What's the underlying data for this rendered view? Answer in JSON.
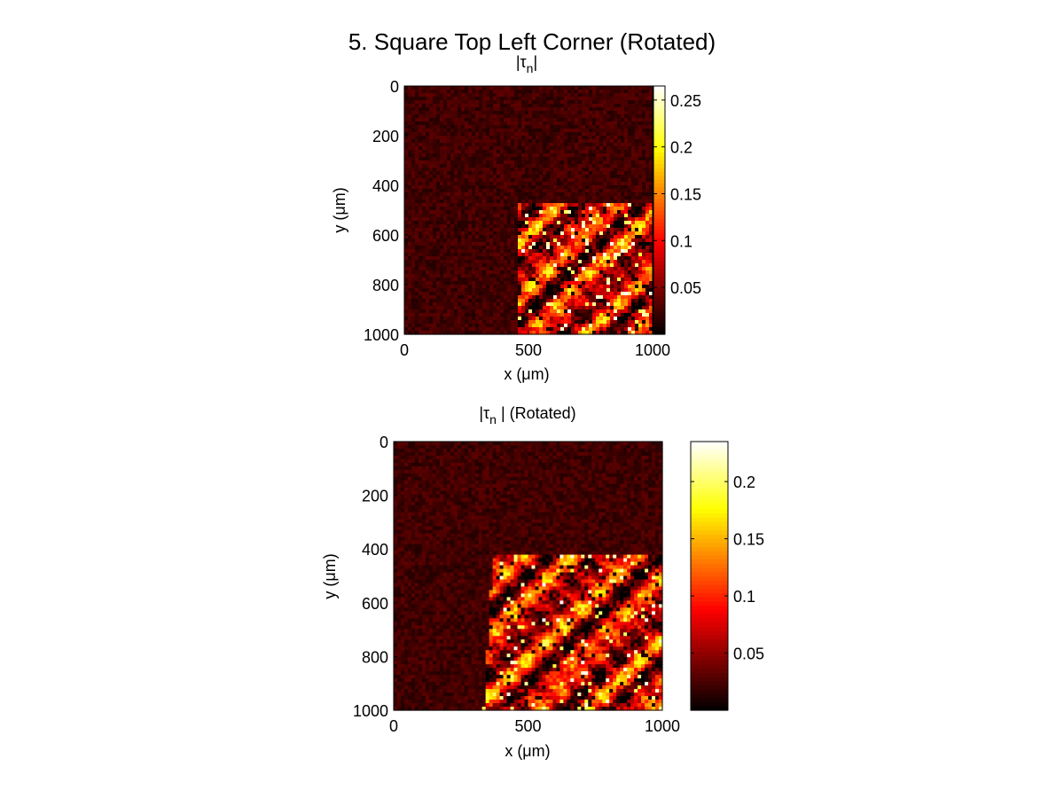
{
  "figure_title": "5. Square Top Left Corner (Rotated)",
  "chart_data": [
    {
      "type": "heatmap",
      "title": "|τn|",
      "title_parts": {
        "open": "|τ",
        "sub": "n",
        "close": "|"
      },
      "xlabel": "x (μm)",
      "ylabel": "y (μm)",
      "xlim": [
        0,
        1000
      ],
      "ylim": [
        1000,
        0
      ],
      "y_reversed": true,
      "xticks": [
        0,
        500,
        1000
      ],
      "yticks": [
        0,
        200,
        400,
        600,
        800,
        1000
      ],
      "colormap": "hot",
      "colorbar": {
        "range": [
          0,
          0.265
        ],
        "ticks": [
          0.05,
          0.1,
          0.15,
          0.2,
          0.25
        ],
        "tick_labels": [
          "0.05",
          "0.1",
          "0.15",
          "0.2",
          "0.25"
        ]
      },
      "description": "Low noisy background (~0.02); bright granular grain region for x > ~450 μm, y > ~470 μm.",
      "region": {
        "x_start": 450,
        "y_start": 470,
        "rotated": false
      }
    },
    {
      "type": "heatmap",
      "title": "|τn | (Rotated)",
      "title_parts": {
        "open": "|τ",
        "sub": "n",
        "close": " | (Rotated)"
      },
      "xlabel": "x (μm)",
      "ylabel": "y (μm)",
      "xlim": [
        0,
        1000
      ],
      "ylim": [
        1000,
        0
      ],
      "y_reversed": true,
      "xticks": [
        0,
        500,
        1000
      ],
      "yticks": [
        0,
        200,
        400,
        600,
        800,
        1000
      ],
      "colormap": "hot",
      "colorbar": {
        "range": [
          0,
          0.235
        ],
        "ticks": [
          0.05,
          0.1,
          0.15,
          0.2
        ],
        "tick_labels": [
          "0.05",
          "0.1",
          "0.15",
          "0.2"
        ]
      },
      "description": "Low noisy background; bright grain region slightly rotated, starting near x ~ 350–390 μm, y ~ 410 μm.",
      "region": {
        "x_start": 370,
        "y_start": 415,
        "rotated": true
      }
    }
  ]
}
